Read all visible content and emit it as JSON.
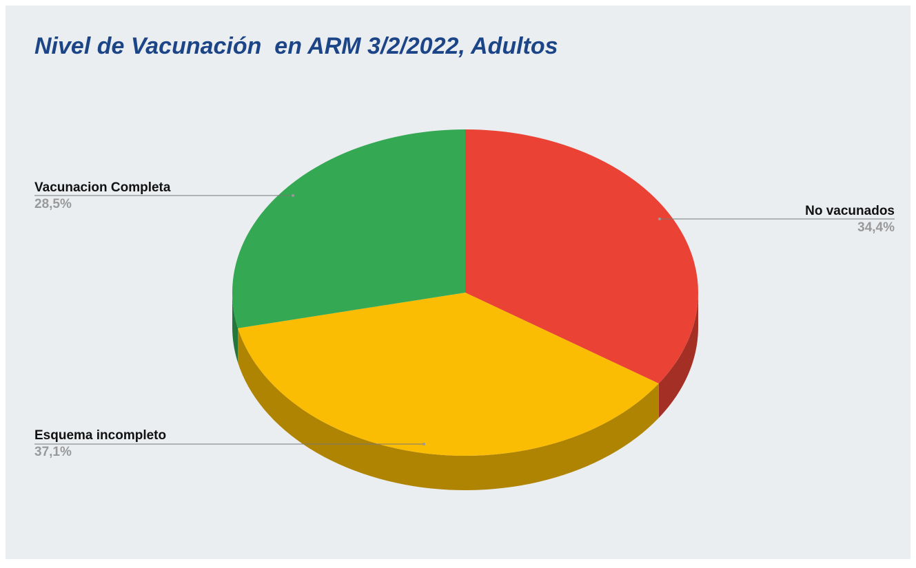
{
  "chart_data": {
    "type": "pie3d",
    "title": "Nivel de Vacunación  en ARM 3/2/2022, Adultos",
    "categories": [
      "No vacunados",
      "Esquema incompleto",
      "Vacunacion Completa"
    ],
    "values": [
      34.4,
      37.1,
      28.5
    ],
    "value_labels": [
      "34,4%",
      "37,1%",
      "28,5%"
    ],
    "colors": [
      "#ea4335",
      "#fbbc04",
      "#34a853"
    ]
  }
}
